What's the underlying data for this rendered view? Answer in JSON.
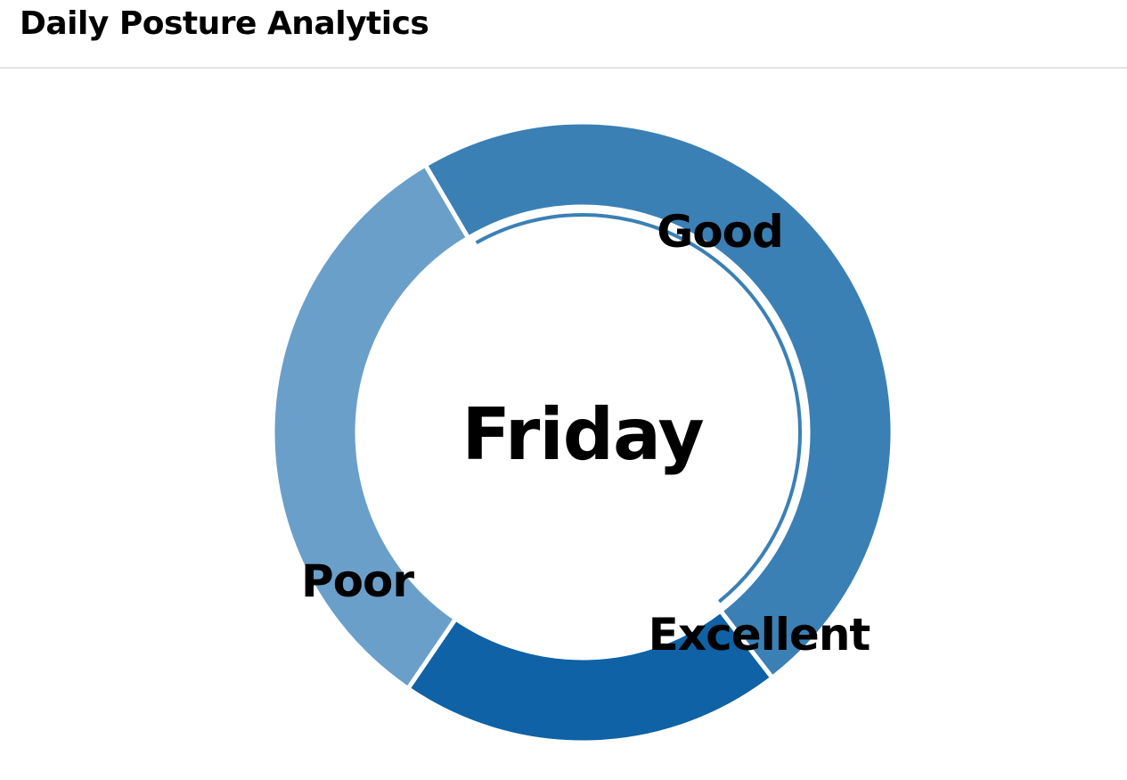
{
  "header": {
    "title": "Daily Posture Analytics"
  },
  "chart_data": {
    "type": "pie",
    "variant": "donut",
    "center_label": "Friday",
    "categories": [
      "Good",
      "Excellent",
      "Poor"
    ],
    "values": [
      48,
      20,
      32
    ],
    "unit": "percent",
    "colors": [
      "#3a80b5",
      "#0e62a5",
      "#6a9fca"
    ],
    "legend": "none",
    "data_labels": "on slices",
    "highlighted_slice": "Good"
  }
}
